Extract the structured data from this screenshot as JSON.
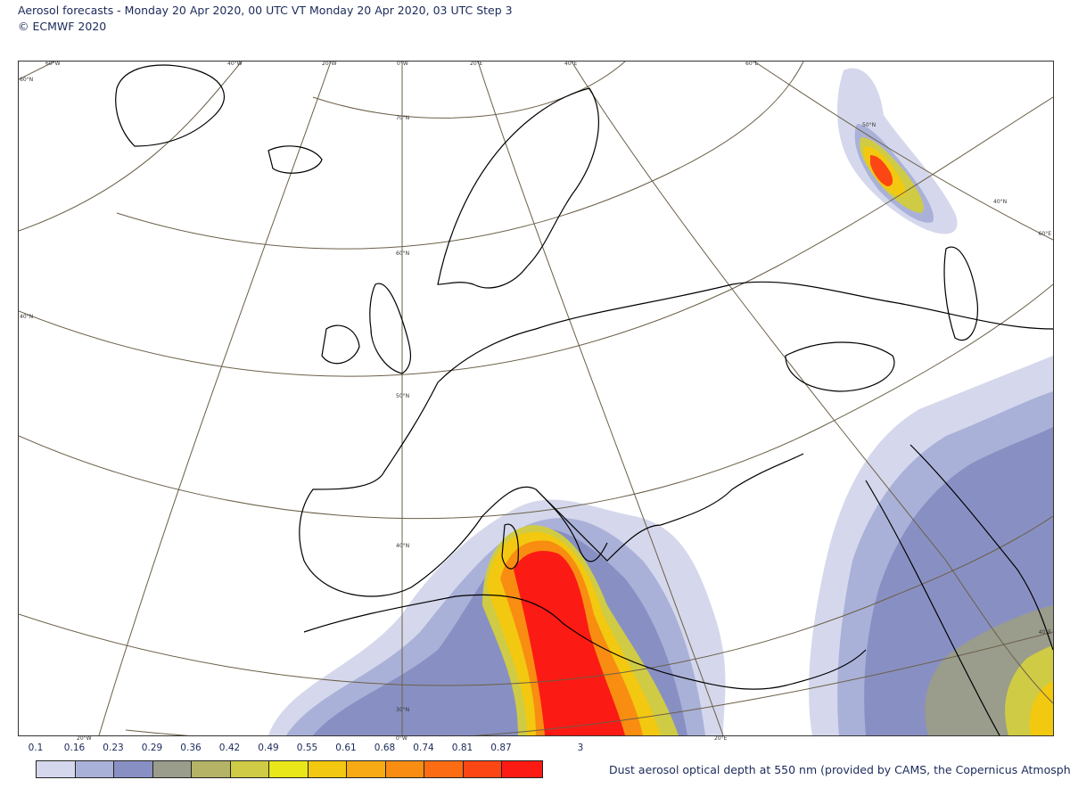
{
  "header": {
    "line1": "Aerosol forecasts - Monday 20 Apr 2020, 00 UTC VT Monday 20 Apr 2020, 03 UTC Step 3",
    "line2": "© ECMWF 2020"
  },
  "map": {
    "top_ticks": [
      "60°W",
      "40°W",
      "20°W",
      "0°W",
      "20°E",
      "40°E",
      "60°E"
    ],
    "bottom_ticks": [
      "20°W",
      "0°W",
      "20°E"
    ],
    "left_ticks": [
      "60°N",
      "40°N"
    ],
    "right_ticks": [
      "60°E",
      "40°E"
    ],
    "inner_labels": [
      "70°N",
      "60°N",
      "50°N",
      "40°N",
      "30°N",
      "50°N",
      "40°N"
    ]
  },
  "legend": {
    "labels": [
      "0.1",
      "0.16",
      "0.23",
      "0.29",
      "0.36",
      "0.42",
      "0.49",
      "0.55",
      "0.61",
      "0.68",
      "0.74",
      "0.81",
      "0.87",
      "3"
    ],
    "colors": [
      "#d5d8ec",
      "#aab1d8",
      "#8890c3",
      "#9a9c8c",
      "#b4b366",
      "#cfcb45",
      "#e9e61a",
      "#f3c810",
      "#f7aa13",
      "#f88d12",
      "#fb6c13",
      "#fc4614",
      "#fc1a14"
    ],
    "caption": "Dust aerosol optical depth at 550 nm (provided by CAMS, the Copernicus Atmosphere M"
  }
}
